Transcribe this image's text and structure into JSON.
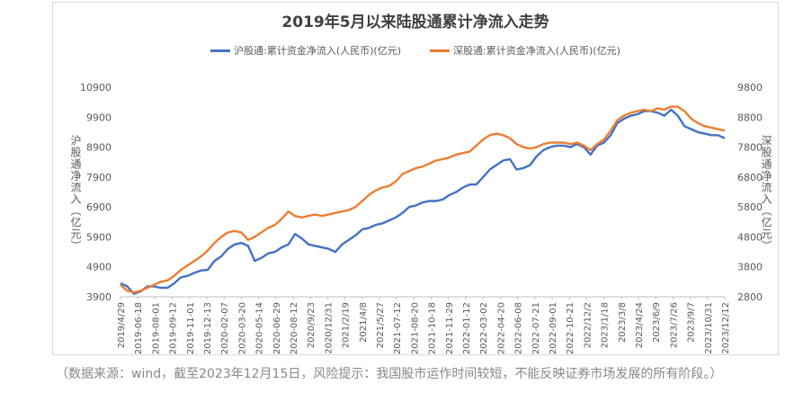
{
  "chart_data": {
    "type": "line",
    "title": "2019年5月以来陆股通累计净流入走势",
    "ylabel_left": "沪股通净流入（亿元）",
    "ylabel_right": "深股通净流入（亿元）",
    "y_left_ticks": [
      3900,
      4900,
      5900,
      6900,
      7900,
      8900,
      9900,
      10900
    ],
    "y_right_ticks": [
      2800,
      3800,
      4800,
      5800,
      6800,
      7800,
      8800,
      9800
    ],
    "ylim_left": [
      3900,
      10900
    ],
    "ylim_right": [
      2800,
      9800
    ],
    "x_ticks": [
      "2019/4/29",
      "2019-06-18",
      "2019-08-01",
      "2019-09-12",
      "2019-11-01",
      "2019-12-13",
      "2020-02-07",
      "2020-03-20",
      "2020-05-14",
      "2020-06-29",
      "2020-08-12",
      "2020/9/23",
      "2020/12/31",
      "2021/2/19",
      "2021/4/8",
      "2021/5/27",
      "2021-07-12",
      "2021-08-20",
      "2021-10-18",
      "2021-11-29",
      "2022-01-12",
      "2022-03-02",
      "2022-04-20",
      "2022-06-08",
      "2022-07-21",
      "2022-09-01",
      "2022-10-21",
      "2022/12/2",
      "2023/1/18",
      "2023/3/8",
      "2023/4/24",
      "2023/6/9",
      "2023/7/26",
      "2023/9/7",
      "2023/10/31",
      "2023/12/12"
    ],
    "legend_position": "top",
    "grid": false,
    "series": [
      {
        "name": "沪股通:累计资金净流入(人民币)(亿元)",
        "axis": "left",
        "color": "#4472C4",
        "values": [
          4350,
          4250,
          4000,
          4080,
          4250,
          4250,
          4200,
          4200,
          4350,
          4550,
          4600,
          4700,
          4780,
          4800,
          5100,
          5250,
          5500,
          5650,
          5700,
          5600,
          5100,
          5200,
          5350,
          5400,
          5550,
          5650,
          6000,
          5850,
          5650,
          5600,
          5550,
          5500,
          5400,
          5650,
          5800,
          5950,
          6150,
          6200,
          6300,
          6350,
          6450,
          6550,
          6700,
          6900,
          6950,
          7050,
          7100,
          7100,
          7150,
          7300,
          7400,
          7550,
          7650,
          7650,
          7900,
          8150,
          8300,
          8450,
          8500,
          8150,
          8200,
          8300,
          8600,
          8800,
          8900,
          8950,
          8950,
          8900,
          9000,
          8900,
          8650,
          8950,
          9050,
          9300,
          9700,
          9850,
          9950,
          10000,
          10100,
          10100,
          10050,
          9950,
          10150,
          9950,
          9600,
          9500,
          9400,
          9350,
          9300,
          9300,
          9200
        ]
      },
      {
        "name": "深股通:累计资金净流入(人民币)(亿元)",
        "axis": "right",
        "color": "#ED7D31",
        "values": [
          3200,
          3000,
          2950,
          3000,
          3100,
          3200,
          3300,
          3350,
          3500,
          3700,
          3850,
          4000,
          4150,
          4350,
          4600,
          4800,
          4950,
          5000,
          4950,
          4700,
          4800,
          4950,
          5100,
          5200,
          5400,
          5650,
          5500,
          5450,
          5500,
          5550,
          5500,
          5550,
          5600,
          5650,
          5700,
          5800,
          6000,
          6200,
          6350,
          6450,
          6500,
          6650,
          6900,
          7000,
          7100,
          7150,
          7250,
          7350,
          7400,
          7450,
          7550,
          7600,
          7650,
          7850,
          8050,
          8200,
          8250,
          8200,
          8100,
          7900,
          7800,
          7750,
          7800,
          7900,
          7950,
          7950,
          7950,
          7900,
          7950,
          7850,
          7700,
          7900,
          8050,
          8350,
          8700,
          8850,
          8950,
          9000,
          9050,
          9000,
          9100,
          9050,
          9150,
          9150,
          9000,
          8750,
          8600,
          8500,
          8450,
          8400,
          8350
        ]
      }
    ]
  },
  "caption": "（数据来源：wind，截至2023年12月15日，风险提示：我国股市运作时间较短，不能反映证券市场发展的所有阶段。）"
}
